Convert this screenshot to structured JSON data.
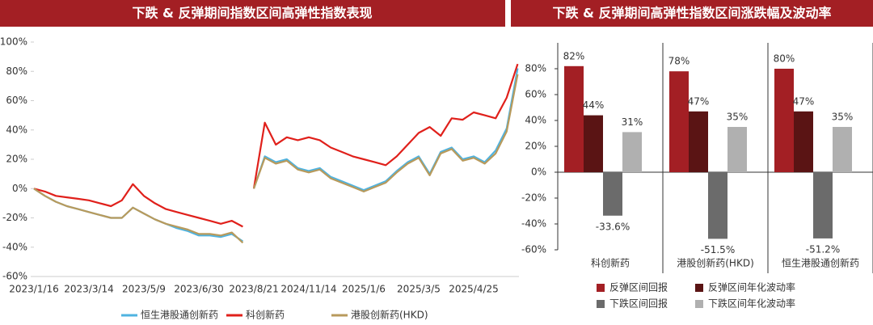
{
  "chart_data": [
    {
      "type": "line",
      "title": "下跌 & 反弹期间指数区间高弹性指数表现",
      "categories": [
        "2023/1/16",
        null,
        null,
        null,
        null,
        "2023/3/14",
        null,
        null,
        null,
        null,
        "2023/5/9",
        null,
        null,
        null,
        null,
        "2023/6/30",
        null,
        null,
        null,
        null,
        "2023/8/21",
        null,
        null,
        null,
        null,
        "2024/11/14",
        null,
        null,
        null,
        null,
        "2025/1/6",
        null,
        null,
        null,
        null,
        "2025/3/5",
        null,
        null,
        null,
        null,
        "2025/4/25",
        null,
        null,
        null,
        null
      ],
      "series": [
        {
          "name": "恒生港股通创新药",
          "color": "#4fb3e0",
          "values": [
            0,
            -5,
            -9,
            -12,
            -14,
            -16,
            -18,
            -20,
            -20,
            -13,
            -17,
            -21,
            -24,
            -27,
            -29,
            -32,
            -32,
            -33,
            -31,
            -36,
            0,
            22,
            18,
            20,
            14,
            12,
            14,
            8,
            5,
            2,
            -1,
            2,
            5,
            12,
            18,
            22,
            10,
            25,
            28,
            20,
            22,
            18,
            26,
            41,
            82
          ]
        },
        {
          "name": "科创新药",
          "color": "#e0201b",
          "values": [
            0,
            -2,
            -5,
            -6,
            -7,
            -8,
            -10,
            -12,
            -8,
            3,
            -5,
            -10,
            -14,
            -16,
            -18,
            -20,
            -22,
            -24,
            -22,
            -26,
            0,
            45,
            30,
            35,
            33,
            35,
            33,
            28,
            25,
            22,
            20,
            18,
            16,
            22,
            30,
            38,
            42,
            36,
            48,
            47,
            52,
            50,
            48,
            62,
            85
          ]
        },
        {
          "name": "港股创新药(HKD)",
          "color": "#b89a5c",
          "values": [
            0,
            -5,
            -9,
            -12,
            -14,
            -16,
            -18,
            -20,
            -20,
            -13,
            -17,
            -21,
            -24,
            -26,
            -28,
            -31,
            -31,
            -32,
            -30,
            -37,
            0,
            21,
            17,
            19,
            13,
            11,
            13,
            7,
            4,
            1,
            -2,
            1,
            4,
            11,
            17,
            21,
            9,
            24,
            27,
            19,
            21,
            17,
            24,
            39,
            78
          ]
        }
      ],
      "ylim": [
        -60,
        100
      ],
      "yticks": [
        {
          "value": -60,
          "label": "-60%"
        },
        {
          "value": -40,
          "label": "-40%"
        },
        {
          "value": -20,
          "label": "-20%"
        },
        {
          "value": 0,
          "label": "0%"
        },
        {
          "value": 20,
          "label": "20%"
        },
        {
          "value": 40,
          "label": "40%"
        },
        {
          "value": 60,
          "label": "60%"
        },
        {
          "value": 80,
          "label": "80%"
        },
        {
          "value": 100,
          "label": "100%"
        }
      ],
      "legend": "bottom"
    },
    {
      "type": "bar",
      "title": "下跌 & 反弹期间高弹性指数区间涨跌幅及波动率",
      "categories": [
        "科创新药",
        "港股创新药(HKD)",
        "恒生港股通创新药"
      ],
      "series": [
        {
          "name": "反弹区间回报",
          "color": "#a31f24",
          "values": [
            82,
            78,
            80
          ],
          "value_labels": [
            "82%",
            "78%",
            "80%"
          ]
        },
        {
          "name": "反弹区间年化波动率",
          "color": "#5a1414",
          "values": [
            44,
            47,
            47
          ],
          "value_labels": [
            "44%",
            "47%",
            "47%"
          ]
        },
        {
          "name": "下跌区间回报",
          "color": "#6b6b6b",
          "values": [
            -33.6,
            -51.5,
            -51.2
          ],
          "value_labels": [
            "-33.6%",
            "-51.5%",
            "-51.2%"
          ]
        },
        {
          "name": "下跌区间年化波动率",
          "color": "#b0b0b0",
          "values": [
            31,
            35,
            35
          ],
          "value_labels": [
            "31%",
            "35%",
            "35%"
          ]
        }
      ],
      "ylim": [
        -60,
        100
      ],
      "yticks": [
        {
          "value": -60,
          "label": "-60%"
        },
        {
          "value": -40,
          "label": "-40%"
        },
        {
          "value": -20,
          "label": "-20%"
        },
        {
          "value": 0,
          "label": "0%"
        },
        {
          "value": 20,
          "label": "20%"
        },
        {
          "value": 40,
          "label": "40%"
        },
        {
          "value": 60,
          "label": "60%"
        },
        {
          "value": 80,
          "label": "80%"
        }
      ],
      "legend": "bottom"
    }
  ]
}
